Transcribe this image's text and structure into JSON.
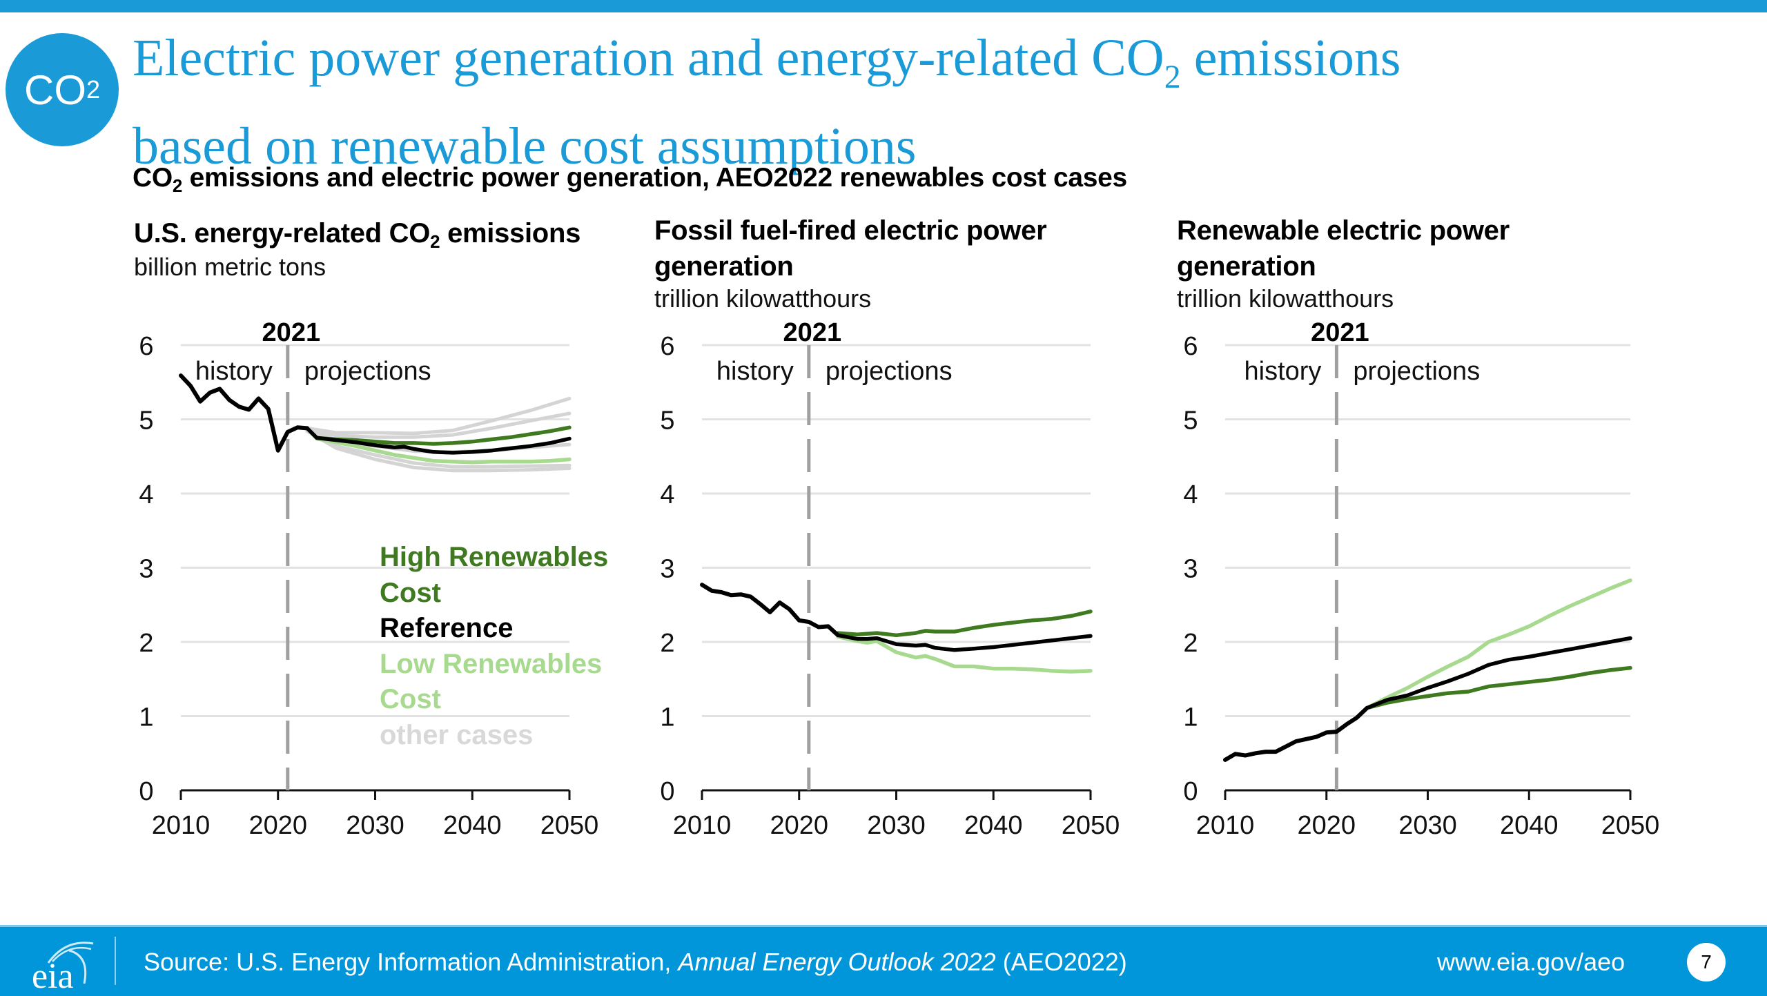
{
  "header": {
    "badge_text": "CO",
    "badge_sub": "2",
    "title_line1_a": "Electric power generation and energy-related CO",
    "title_sub": "2",
    "title_line1_b": " emissions",
    "title_line2": "based on renewable cost assumptions",
    "subtitle_a": "CO",
    "subtitle_sub": "2",
    "subtitle_b": " emissions and electric power generation, AEO2022 renewables cost cases"
  },
  "colors": {
    "brand_blue": "#1a9ad6",
    "high_renewables_cost": "#3f7a20",
    "reference": "#000000",
    "low_renewables_cost": "#a7d98e",
    "other_cases": "#d4d4d4",
    "divider": "#a0a0a0",
    "grid": "#e2e2e2"
  },
  "legend": {
    "items": [
      {
        "label_line1": "High Renewables",
        "label_line2": "Cost",
        "color": "#3f7a20"
      },
      {
        "label_line1": "Reference",
        "label_line2": "",
        "color": "#000000"
      },
      {
        "label_line1": "Low Renewables",
        "label_line2": "Cost",
        "color": "#a7d98e"
      },
      {
        "label_line1": "other cases",
        "label_line2": "",
        "color": "#d4d4d4"
      }
    ]
  },
  "chart_data": [
    {
      "type": "line",
      "title_a": "U.S. energy-related CO",
      "title_sub": "2",
      "title_b": " emissions",
      "units": "billion metric tons",
      "divider_year": 2021,
      "divider_label": "2021",
      "history_label": "history",
      "projections_label": "projections",
      "xlim": [
        2010,
        2050
      ],
      "ylim": [
        0,
        6
      ],
      "xticks": [
        "2010",
        "2020",
        "2030",
        "2040",
        "2050"
      ],
      "yticks": [
        "0",
        "1",
        "2",
        "3",
        "4",
        "5",
        "6"
      ],
      "grid": true,
      "legend_position": "center-right",
      "history": {
        "name": "History",
        "x": [
          2010,
          2011,
          2012,
          2013,
          2014,
          2015,
          2016,
          2017,
          2018,
          2019,
          2020,
          2021,
          2022,
          2023
        ],
        "values": [
          5.59,
          5.45,
          5.24,
          5.36,
          5.41,
          5.26,
          5.17,
          5.13,
          5.28,
          5.14,
          4.58,
          4.83,
          4.89,
          4.88
        ]
      },
      "series": [
        {
          "name": "High Renewables Cost",
          "x": [
            2023,
            2024,
            2026,
            2028,
            2030,
            2032,
            2034,
            2036,
            2038,
            2040,
            2042,
            2044,
            2046,
            2048,
            2050
          ],
          "values": [
            4.88,
            4.75,
            4.73,
            4.72,
            4.7,
            4.68,
            4.68,
            4.67,
            4.68,
            4.7,
            4.73,
            4.76,
            4.8,
            4.84,
            4.89
          ]
        },
        {
          "name": "Reference",
          "x": [
            2023,
            2024,
            2026,
            2028,
            2030,
            2032,
            2033,
            2034,
            2036,
            2038,
            2040,
            2042,
            2044,
            2046,
            2048,
            2050
          ],
          "values": [
            4.88,
            4.75,
            4.72,
            4.69,
            4.65,
            4.62,
            4.63,
            4.6,
            4.56,
            4.55,
            4.56,
            4.58,
            4.61,
            4.64,
            4.68,
            4.74
          ]
        },
        {
          "name": "Low Renewables Cost",
          "x": [
            2023,
            2024,
            2026,
            2028,
            2030,
            2032,
            2034,
            2036,
            2038,
            2040,
            2042,
            2044,
            2046,
            2048,
            2050
          ],
          "values": [
            4.88,
            4.74,
            4.69,
            4.64,
            4.58,
            4.52,
            4.48,
            4.44,
            4.43,
            4.42,
            4.43,
            4.43,
            4.43,
            4.44,
            4.46
          ]
        },
        {
          "name": "other cases 1",
          "x": [
            2023,
            2026,
            2030,
            2034,
            2038,
            2042,
            2046,
            2050
          ],
          "values": [
            4.88,
            4.82,
            4.82,
            4.81,
            4.85,
            4.98,
            5.12,
            5.28
          ]
        },
        {
          "name": "other cases 2",
          "x": [
            2023,
            2026,
            2030,
            2034,
            2038,
            2042,
            2046,
            2050
          ],
          "values": [
            4.88,
            4.78,
            4.76,
            4.76,
            4.79,
            4.88,
            4.98,
            5.08
          ]
        },
        {
          "name": "other cases 3",
          "x": [
            2023,
            2026,
            2030,
            2034,
            2038,
            2042,
            2046,
            2050
          ],
          "values": [
            4.88,
            4.72,
            4.64,
            4.57,
            4.56,
            4.58,
            4.62,
            4.66
          ]
        },
        {
          "name": "other cases 4",
          "x": [
            2023,
            2026,
            2030,
            2034,
            2038,
            2042,
            2046,
            2050
          ],
          "values": [
            4.85,
            4.64,
            4.52,
            4.41,
            4.36,
            4.36,
            4.37,
            4.38
          ]
        },
        {
          "name": "other cases 5",
          "x": [
            2023,
            2026,
            2030,
            2034,
            2038,
            2042,
            2046,
            2050
          ],
          "values": [
            4.84,
            4.61,
            4.46,
            4.35,
            4.31,
            4.31,
            4.32,
            4.34
          ]
        }
      ]
    },
    {
      "type": "line",
      "title_line1": "Fossil fuel-fired electric power",
      "title_line2": "generation",
      "units": "trillion kilowatthours",
      "divider_year": 2021,
      "divider_label": "2021",
      "history_label": "history",
      "projections_label": "projections",
      "xlim": [
        2010,
        2050
      ],
      "ylim": [
        0,
        6
      ],
      "xticks": [
        "2010",
        "2020",
        "2030",
        "2040",
        "2050"
      ],
      "yticks": [
        "0",
        "1",
        "2",
        "3",
        "4",
        "5",
        "6"
      ],
      "grid": true,
      "history": {
        "name": "History",
        "x": [
          2010,
          2011,
          2012,
          2013,
          2014,
          2015,
          2016,
          2017,
          2018,
          2019,
          2020,
          2021,
          2022,
          2023,
          2024
        ],
        "values": [
          2.77,
          2.69,
          2.67,
          2.63,
          2.64,
          2.61,
          2.51,
          2.4,
          2.53,
          2.44,
          2.29,
          2.27,
          2.2,
          2.21,
          2.09
        ]
      },
      "series": [
        {
          "name": "High Renewables Cost",
          "x": [
            2024,
            2026,
            2028,
            2030,
            2032,
            2033,
            2034,
            2036,
            2038,
            2040,
            2042,
            2044,
            2046,
            2048,
            2050
          ],
          "values": [
            2.12,
            2.1,
            2.12,
            2.09,
            2.12,
            2.15,
            2.14,
            2.14,
            2.19,
            2.23,
            2.26,
            2.29,
            2.31,
            2.35,
            2.41
          ]
        },
        {
          "name": "Reference",
          "x": [
            2024,
            2026,
            2027,
            2028,
            2030,
            2032,
            2033,
            2034,
            2036,
            2038,
            2040,
            2042,
            2044,
            2046,
            2048,
            2050
          ],
          "values": [
            2.09,
            2.04,
            2.04,
            2.05,
            1.97,
            1.95,
            1.96,
            1.92,
            1.89,
            1.91,
            1.93,
            1.96,
            1.99,
            2.02,
            2.05,
            2.08
          ]
        },
        {
          "name": "Low Renewables Cost",
          "x": [
            2024,
            2026,
            2027,
            2028,
            2030,
            2032,
            2033,
            2034,
            2036,
            2038,
            2040,
            2042,
            2044,
            2046,
            2048,
            2050
          ],
          "values": [
            2.07,
            2.01,
            1.99,
            2.01,
            1.86,
            1.79,
            1.81,
            1.77,
            1.67,
            1.67,
            1.64,
            1.64,
            1.63,
            1.61,
            1.6,
            1.61
          ]
        }
      ]
    },
    {
      "type": "line",
      "title_line1": "Renewable electric power",
      "title_line2": "generation",
      "units": "trillion kilowatthours",
      "divider_year": 2021,
      "divider_label": "2021",
      "history_label": "history",
      "projections_label": "projections",
      "xlim": [
        2010,
        2050
      ],
      "ylim": [
        0,
        6
      ],
      "xticks": [
        "2010",
        "2020",
        "2030",
        "2040",
        "2050"
      ],
      "yticks": [
        "0",
        "1",
        "2",
        "3",
        "4",
        "5",
        "6"
      ],
      "grid": true,
      "history": {
        "name": "History",
        "x": [
          2010,
          2011,
          2012,
          2013,
          2014,
          2015,
          2016,
          2017,
          2018,
          2019,
          2020,
          2021,
          2022,
          2023,
          2024
        ],
        "values": [
          0.41,
          0.49,
          0.47,
          0.5,
          0.52,
          0.52,
          0.59,
          0.66,
          0.69,
          0.72,
          0.78,
          0.79,
          0.89,
          0.98,
          1.11
        ]
      },
      "series": [
        {
          "name": "High Renewables Cost",
          "x": [
            2024,
            2026,
            2028,
            2030,
            2032,
            2034,
            2036,
            2038,
            2040,
            2042,
            2044,
            2046,
            2048,
            2050
          ],
          "values": [
            1.11,
            1.18,
            1.23,
            1.27,
            1.31,
            1.33,
            1.4,
            1.43,
            1.46,
            1.49,
            1.53,
            1.58,
            1.62,
            1.65
          ]
        },
        {
          "name": "Reference",
          "x": [
            2024,
            2026,
            2028,
            2030,
            2032,
            2034,
            2036,
            2038,
            2040,
            2042,
            2044,
            2046,
            2048,
            2050
          ],
          "values": [
            1.11,
            1.22,
            1.28,
            1.38,
            1.47,
            1.57,
            1.69,
            1.76,
            1.8,
            1.85,
            1.9,
            1.95,
            2.0,
            2.05
          ]
        },
        {
          "name": "Low Renewables Cost",
          "x": [
            2024,
            2026,
            2028,
            2030,
            2032,
            2034,
            2036,
            2038,
            2040,
            2042,
            2044,
            2046,
            2048,
            2050
          ],
          "values": [
            1.11,
            1.25,
            1.38,
            1.53,
            1.67,
            1.8,
            2.0,
            2.1,
            2.21,
            2.35,
            2.48,
            2.6,
            2.72,
            2.83
          ]
        }
      ]
    }
  ],
  "footer": {
    "logo_text": "eia",
    "source_prefix": "Source: U.S. Energy Information Administration, ",
    "source_italic": "Annual Energy Outlook 2022",
    "source_suffix": " (AEO2022)",
    "url": "www.eia.gov/aeo",
    "page_number": "7"
  }
}
